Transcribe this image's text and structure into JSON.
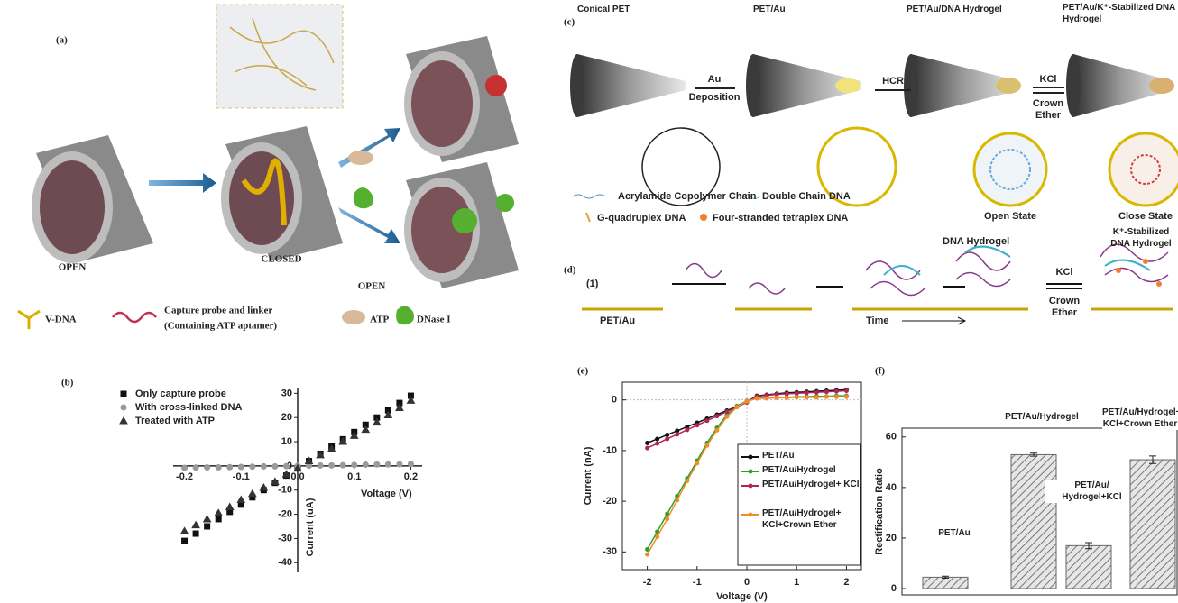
{
  "panel_a": {
    "label": "(a)",
    "states": [
      "OPEN",
      "CLOSED",
      "OPEN"
    ],
    "legend": [
      "V-DNA",
      "Capture probe and linker",
      "(Containing ATP aptamer)",
      "ATP",
      "DNase I"
    ]
  },
  "panel_b": {
    "label": "(b)"
  },
  "panel_c": {
    "label": "(c)",
    "stages": [
      "Conical PET",
      "PET/Au",
      "PET/Au/DNA Hydrogel",
      "PET/Au/K⁺-Stabilized DNA Hydrogel"
    ],
    "steps": [
      "Au",
      "Deposition",
      "HCR",
      "KCl",
      "Crown",
      "Ether"
    ],
    "states": [
      "Open State",
      "Close State"
    ],
    "legend": [
      "Acrylamide Copolymer Chain",
      "Double Chain DNA",
      "G-quadruplex DNA",
      "Four-stranded tetraplex DNA"
    ]
  },
  "panel_d": {
    "label": "(d)",
    "texts": [
      "(1)",
      "PET/Au",
      "Time",
      "DNA Hydrogel",
      "K⁺-Stabilized DNA Hydrogel",
      "KCl",
      "Crown",
      "Ether"
    ]
  },
  "panel_e": {
    "label": "(e)"
  },
  "panel_f": {
    "label": "(f)"
  },
  "chart_data": [
    {
      "type": "scatter",
      "xlabel": "Voltage (V)",
      "ylabel": "Current (uA)",
      "x": [
        -0.2,
        -0.18,
        -0.16,
        -0.14,
        -0.12,
        -0.1,
        -0.08,
        -0.06,
        -0.04,
        -0.02,
        0,
        0.02,
        0.04,
        0.06,
        0.08,
        0.1,
        0.12,
        0.14,
        0.16,
        0.18,
        0.2
      ],
      "series": [
        {
          "name": "Only capture probe",
          "color": "#111111",
          "marker": "square",
          "values": [
            -31,
            -28,
            -25,
            -22,
            -19,
            -16,
            -13,
            -10,
            -7,
            -4,
            -1,
            2,
            5,
            8,
            11,
            14,
            17,
            20,
            23,
            26,
            29
          ]
        },
        {
          "name": "With cross-linked DNA",
          "color": "#9a9a9a",
          "marker": "circle",
          "values": [
            -0.8,
            -0.7,
            -0.6,
            -0.6,
            -0.5,
            -0.4,
            -0.3,
            -0.2,
            -0.2,
            -0.1,
            0,
            0.1,
            0.2,
            0.2,
            0.3,
            0.4,
            0.5,
            0.6,
            0.6,
            0.7,
            0.8
          ]
        },
        {
          "name": "Treated with ATP",
          "color": "#333333",
          "marker": "triangle",
          "values": [
            -27,
            -24.5,
            -22,
            -19.5,
            -17,
            -14,
            -11.5,
            -9,
            -6.5,
            -3.5,
            -1,
            2,
            4.5,
            7,
            10,
            12.5,
            15,
            18,
            21,
            24,
            27
          ]
        }
      ],
      "xlim": [
        -0.22,
        0.22
      ],
      "ylim": [
        -44,
        32
      ],
      "xticks": [
        -0.2,
        -0.1,
        {
          "value": 0,
          "label": "0.0"
        },
        0.1,
        0.2
      ],
      "yticks": [
        30,
        20,
        10,
        0,
        -10,
        -20,
        -30,
        -40
      ]
    },
    {
      "type": "line",
      "xlabel": "Voltage (V)",
      "ylabel": "Current (nA)",
      "x": [
        -2,
        -1.8,
        -1.6,
        -1.4,
        -1.2,
        -1,
        -0.8,
        -0.6,
        -0.4,
        -0.2,
        0,
        0.2,
        0.4,
        0.6,
        0.8,
        1,
        1.2,
        1.4,
        1.6,
        1.8,
        2
      ],
      "series": [
        {
          "name": "PET/Au",
          "color": "#111111",
          "values": [
            -8.5,
            -7.7,
            -6.9,
            -6.1,
            -5.3,
            -4.5,
            -3.7,
            -2.9,
            -2.1,
            -1.3,
            -0.4,
            0.8,
            1,
            1.2,
            1.4,
            1.5,
            1.6,
            1.7,
            1.8,
            1.9,
            2
          ]
        },
        {
          "name": "PET/Au/Hydrogel",
          "color": "#2ca02c",
          "values": [
            -29.5,
            -26,
            -22.5,
            -19,
            -15.5,
            -12,
            -8.5,
            -5.5,
            -3,
            -1.2,
            -0.2,
            0.3,
            0.4,
            0.5,
            0.5,
            0.6,
            0.6,
            0.7,
            0.7,
            0.8,
            0.8
          ]
        },
        {
          "name": "PET/Au/Hydrogel+ KCl",
          "color": "#b0245a",
          "values": [
            -9.5,
            -8.6,
            -7.7,
            -6.8,
            -5.9,
            -5,
            -4.1,
            -3.2,
            -2.3,
            -1.4,
            -0.5,
            0.7,
            0.9,
            1.1,
            1.2,
            1.3,
            1.4,
            1.5,
            1.6,
            1.7,
            1.8
          ]
        },
        {
          "name": "PET/Au/Hydrogel+ KCl+Crown Ether",
          "color": "#f28c28",
          "values": [
            -30.5,
            -27,
            -23.5,
            -19.8,
            -16,
            -12.5,
            -9,
            -6,
            -3.3,
            -1.4,
            -0.3,
            0.3,
            0.3,
            0.4,
            0.4,
            0.5,
            0.5,
            0.5,
            0.6,
            0.6,
            0.6
          ]
        }
      ],
      "xlim": [
        -2.5,
        2.3
      ],
      "ylim": [
        -33.5,
        3.5
      ],
      "xticks": [
        -2,
        -1,
        0,
        1,
        2
      ],
      "yticks": [
        0,
        -10,
        -20,
        -30
      ]
    },
    {
      "type": "bar",
      "ylabel": "Rectification Ratio",
      "categories": [
        "PET/Au",
        "PET/Au/Hydrogel",
        "PET/Au/ Hydrogel+KCl",
        "PET/Au/Hydrogel+ KCl+Crown Ether"
      ],
      "values": [
        4.5,
        53,
        17,
        51
      ],
      "errors": [
        0.4,
        0.6,
        1.2,
        1.5
      ],
      "color": "#666666",
      "ylim": [
        -2.5,
        63.5
      ],
      "yticks": [
        0,
        20,
        40,
        60
      ]
    }
  ]
}
